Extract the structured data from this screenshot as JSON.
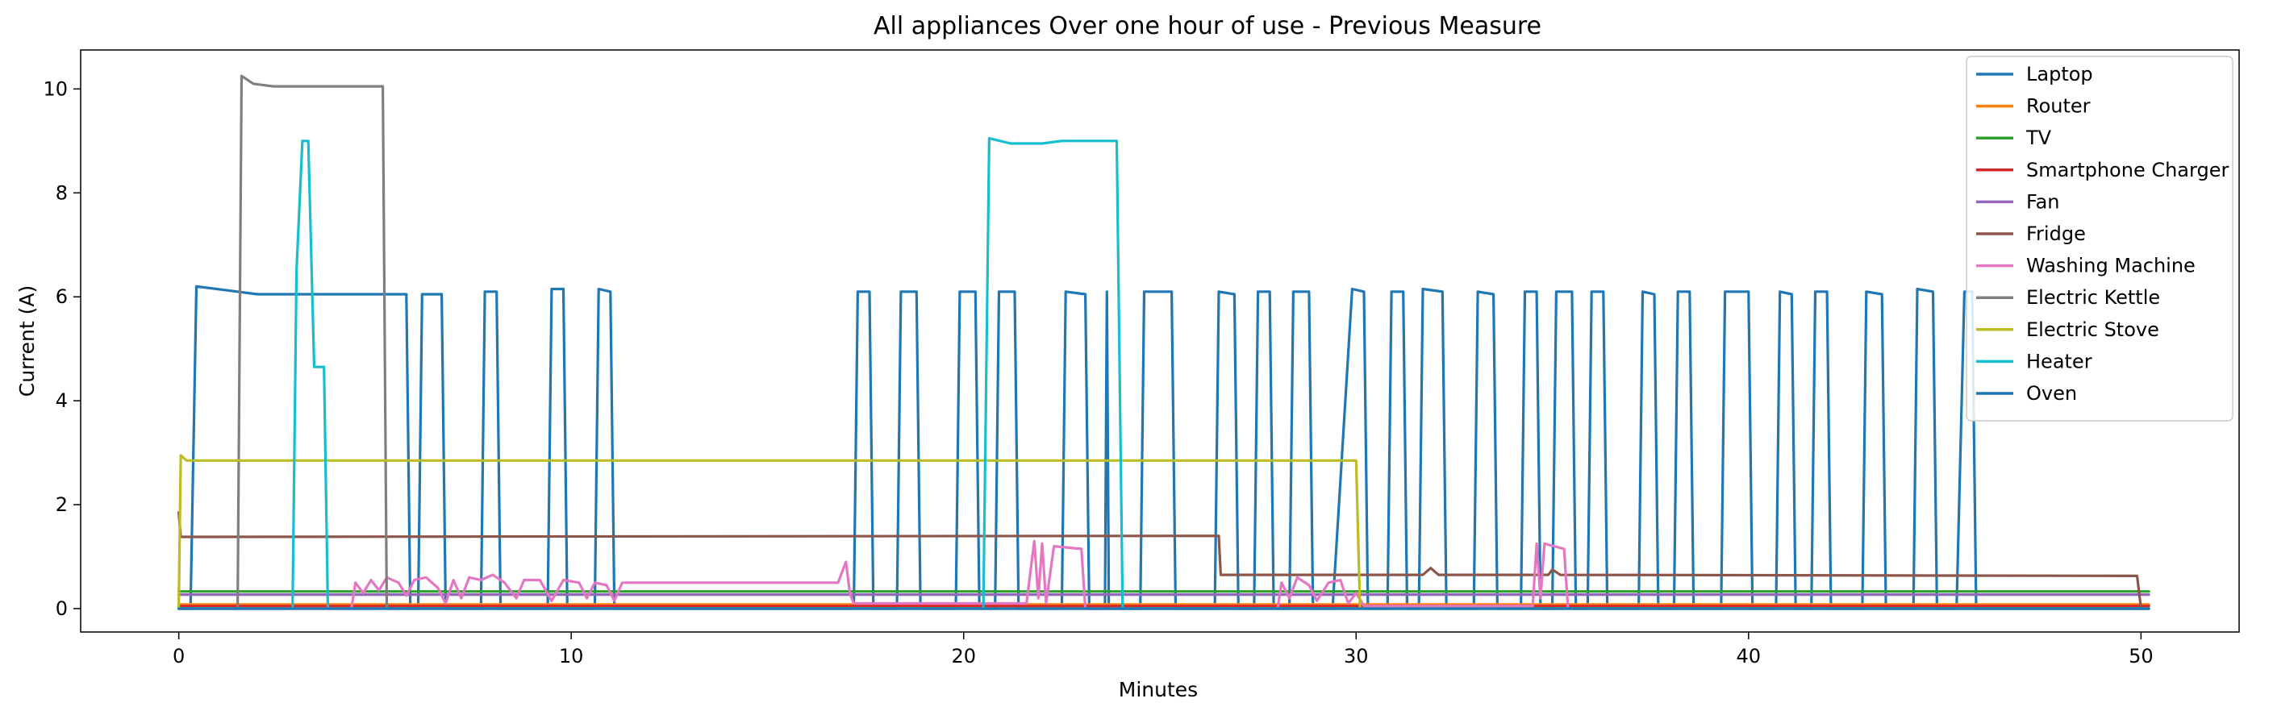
{
  "chart_data": {
    "type": "line",
    "title": "All appliances Over one hour of use - Previous Measure",
    "xlabel": "Minutes",
    "ylabel": "Current (A)",
    "xlim": [
      -2.5,
      52.5
    ],
    "ylim": [
      -0.45,
      10.75
    ],
    "xticks": [
      0,
      10,
      20,
      30,
      40,
      50
    ],
    "yticks": [
      0,
      2,
      4,
      6,
      8,
      10
    ],
    "grid": false,
    "legend_position": "top-right",
    "series": [
      {
        "name": "Laptop",
        "color": "#1f77b4",
        "points": [
          [
            0,
            0
          ],
          [
            0.3,
            0
          ],
          [
            0.45,
            6.2
          ],
          [
            1.5,
            6.1
          ],
          [
            2,
            6.05
          ],
          [
            5.3,
            6.05
          ],
          [
            5.8,
            6.05
          ],
          [
            5.9,
            0
          ],
          [
            6.1,
            0
          ],
          [
            6.2,
            6.05
          ],
          [
            6.7,
            6.05
          ],
          [
            6.8,
            0
          ],
          [
            7.7,
            0
          ],
          [
            7.8,
            6.1
          ],
          [
            8.1,
            6.1
          ],
          [
            8.2,
            0
          ],
          [
            9.4,
            0
          ],
          [
            9.5,
            6.15
          ],
          [
            9.8,
            6.15
          ],
          [
            9.9,
            0
          ],
          [
            10.6,
            0
          ],
          [
            10.7,
            6.15
          ],
          [
            11.0,
            6.1
          ],
          [
            11.1,
            0
          ],
          [
            17.2,
            0
          ],
          [
            17.3,
            6.1
          ],
          [
            17.6,
            6.1
          ],
          [
            17.7,
            0
          ],
          [
            18.3,
            0
          ],
          [
            18.4,
            6.1
          ],
          [
            18.8,
            6.1
          ],
          [
            18.9,
            0
          ],
          [
            19.8,
            0
          ],
          [
            19.9,
            6.1
          ],
          [
            20.3,
            6.1
          ],
          [
            20.4,
            0
          ],
          [
            20.8,
            0
          ],
          [
            20.9,
            6.1
          ],
          [
            21.3,
            6.1
          ],
          [
            21.4,
            0
          ],
          [
            22.5,
            0
          ],
          [
            22.6,
            6.1
          ],
          [
            23.1,
            6.05
          ],
          [
            23.2,
            0
          ],
          [
            23.6,
            0
          ],
          [
            23.65,
            6.1
          ],
          [
            23.7,
            0
          ],
          [
            24.5,
            0
          ],
          [
            24.6,
            6.1
          ],
          [
            25.3,
            6.1
          ],
          [
            25.4,
            0
          ],
          [
            26.4,
            0
          ],
          [
            26.5,
            6.1
          ],
          [
            26.9,
            6.05
          ],
          [
            27.0,
            0
          ],
          [
            27.4,
            0
          ],
          [
            27.5,
            6.1
          ],
          [
            27.8,
            6.1
          ],
          [
            27.9,
            0
          ],
          [
            28.3,
            0
          ],
          [
            28.4,
            6.1
          ],
          [
            28.8,
            6.1
          ],
          [
            28.9,
            0
          ],
          [
            29.4,
            0
          ],
          [
            29.9,
            6.15
          ],
          [
            30.2,
            6.1
          ],
          [
            30.3,
            0
          ],
          [
            30.8,
            0
          ],
          [
            30.9,
            6.1
          ],
          [
            31.2,
            6.1
          ],
          [
            31.3,
            0
          ],
          [
            31.6,
            0
          ],
          [
            31.7,
            6.15
          ],
          [
            32.2,
            6.1
          ],
          [
            32.3,
            0
          ],
          [
            33.0,
            0
          ],
          [
            33.1,
            6.1
          ],
          [
            33.5,
            6.05
          ],
          [
            33.6,
            0
          ],
          [
            34.2,
            0
          ],
          [
            34.3,
            6.1
          ],
          [
            34.6,
            6.1
          ],
          [
            34.7,
            0
          ],
          [
            35.0,
            0
          ],
          [
            35.1,
            6.1
          ],
          [
            35.5,
            6.1
          ],
          [
            35.6,
            0
          ],
          [
            35.9,
            0
          ],
          [
            36.0,
            6.1
          ],
          [
            36.3,
            6.1
          ],
          [
            36.4,
            0
          ],
          [
            37.2,
            0
          ],
          [
            37.3,
            6.1
          ],
          [
            37.6,
            6.05
          ],
          [
            37.7,
            0
          ],
          [
            38.1,
            0
          ],
          [
            38.2,
            6.1
          ],
          [
            38.5,
            6.1
          ],
          [
            38.6,
            0
          ],
          [
            39.3,
            0
          ],
          [
            39.4,
            6.1
          ],
          [
            40.0,
            6.1
          ],
          [
            40.1,
            0
          ],
          [
            40.7,
            0
          ],
          [
            40.8,
            6.1
          ],
          [
            41.1,
            6.05
          ],
          [
            41.2,
            0
          ],
          [
            41.6,
            0
          ],
          [
            41.7,
            6.1
          ],
          [
            42.0,
            6.1
          ],
          [
            42.1,
            0
          ],
          [
            42.9,
            0
          ],
          [
            43.0,
            6.1
          ],
          [
            43.4,
            6.05
          ],
          [
            43.5,
            0
          ],
          [
            44.2,
            0
          ],
          [
            44.3,
            6.15
          ],
          [
            44.7,
            6.1
          ],
          [
            44.8,
            0
          ],
          [
            45.3,
            0
          ],
          [
            45.5,
            6.1
          ],
          [
            45.7,
            6.1
          ],
          [
            45.8,
            0
          ],
          [
            50.2,
            0
          ]
        ]
      },
      {
        "name": "Router",
        "color": "#ff7f0e",
        "points": [
          [
            0,
            0.08
          ],
          [
            50.2,
            0.08
          ]
        ]
      },
      {
        "name": "TV",
        "color": "#2ca02c",
        "points": [
          [
            0,
            0.33
          ],
          [
            50.2,
            0.33
          ]
        ]
      },
      {
        "name": "Smartphone Charger",
        "color": "#d62728",
        "points": [
          [
            0,
            0.05
          ],
          [
            50.2,
            0.05
          ]
        ]
      },
      {
        "name": "Fan",
        "color": "#9467bd",
        "points": [
          [
            0,
            0.27
          ],
          [
            50.2,
            0.27
          ]
        ]
      },
      {
        "name": "Fridge",
        "color": "#8c564b",
        "points": [
          [
            0,
            1.85
          ],
          [
            0.05,
            1.38
          ],
          [
            26.5,
            1.4
          ],
          [
            26.55,
            0.65
          ],
          [
            31.7,
            0.65
          ],
          [
            31.9,
            0.78
          ],
          [
            32.1,
            0.65
          ],
          [
            34.9,
            0.65
          ],
          [
            35.0,
            0.75
          ],
          [
            35.2,
            0.65
          ],
          [
            49.9,
            0.63
          ],
          [
            50.0,
            0
          ]
        ]
      },
      {
        "name": "Washing Machine",
        "color": "#e377c2",
        "points": [
          [
            0,
            0
          ],
          [
            4.4,
            0
          ],
          [
            4.5,
            0.5
          ],
          [
            4.7,
            0.3
          ],
          [
            4.9,
            0.55
          ],
          [
            5.1,
            0.35
          ],
          [
            5.3,
            0.6
          ],
          [
            5.6,
            0.5
          ],
          [
            5.8,
            0.25
          ],
          [
            6.0,
            0.55
          ],
          [
            6.3,
            0.6
          ],
          [
            6.6,
            0.4
          ],
          [
            6.8,
            0.1
          ],
          [
            7.0,
            0.55
          ],
          [
            7.2,
            0.2
          ],
          [
            7.4,
            0.6
          ],
          [
            7.7,
            0.55
          ],
          [
            8.0,
            0.65
          ],
          [
            8.3,
            0.5
          ],
          [
            8.6,
            0.2
          ],
          [
            8.8,
            0.55
          ],
          [
            9.2,
            0.55
          ],
          [
            9.5,
            0.15
          ],
          [
            9.8,
            0.55
          ],
          [
            10.2,
            0.5
          ],
          [
            10.4,
            0.2
          ],
          [
            10.6,
            0.5
          ],
          [
            10.9,
            0.45
          ],
          [
            11.1,
            0.15
          ],
          [
            11.3,
            0.5
          ],
          [
            16.8,
            0.5
          ],
          [
            17.0,
            0.9
          ],
          [
            17.1,
            0.3
          ],
          [
            17.2,
            0.1
          ],
          [
            21.6,
            0.1
          ],
          [
            21.8,
            1.3
          ],
          [
            21.9,
            0.2
          ],
          [
            22.0,
            1.25
          ],
          [
            22.1,
            0.1
          ],
          [
            22.3,
            1.2
          ],
          [
            23.0,
            1.15
          ],
          [
            23.1,
            0
          ],
          [
            28.0,
            0
          ],
          [
            28.1,
            0.5
          ],
          [
            28.3,
            0.2
          ],
          [
            28.5,
            0.6
          ],
          [
            28.8,
            0.45
          ],
          [
            29.0,
            0.15
          ],
          [
            29.3,
            0.5
          ],
          [
            29.6,
            0.55
          ],
          [
            29.8,
            0.1
          ],
          [
            30.0,
            0.3
          ],
          [
            30.2,
            0.05
          ],
          [
            34.5,
            0.05
          ],
          [
            34.6,
            1.25
          ],
          [
            34.7,
            0.2
          ],
          [
            34.8,
            1.25
          ],
          [
            35.3,
            1.15
          ],
          [
            35.4,
            0
          ],
          [
            50.2,
            0
          ]
        ]
      },
      {
        "name": "Electric Kettle",
        "color": "#7f7f7f",
        "points": [
          [
            0,
            0
          ],
          [
            1.5,
            0
          ],
          [
            1.6,
            10.25
          ],
          [
            1.9,
            10.1
          ],
          [
            2.4,
            10.05
          ],
          [
            5.0,
            10.05
          ],
          [
            5.2,
            10.05
          ],
          [
            5.3,
            0
          ],
          [
            50.2,
            0
          ]
        ]
      },
      {
        "name": "Electric Stove",
        "color": "#bcbd22",
        "points": [
          [
            0,
            0
          ],
          [
            0.05,
            2.95
          ],
          [
            0.2,
            2.85
          ],
          [
            30.0,
            2.85
          ],
          [
            30.1,
            0
          ],
          [
            50.2,
            0
          ]
        ]
      },
      {
        "name": "Heater",
        "color": "#17becf",
        "points": [
          [
            0,
            0
          ],
          [
            2.9,
            0
          ],
          [
            3.0,
            6.5
          ],
          [
            3.15,
            9.0
          ],
          [
            3.3,
            9.0
          ],
          [
            3.45,
            4.65
          ],
          [
            3.7,
            4.65
          ],
          [
            3.8,
            0
          ],
          [
            20.5,
            0
          ],
          [
            20.65,
            9.05
          ],
          [
            21.2,
            8.95
          ],
          [
            22.0,
            8.95
          ],
          [
            22.5,
            9.0
          ],
          [
            23.9,
            9.0
          ],
          [
            24.05,
            0
          ],
          [
            50.2,
            0
          ]
        ]
      },
      {
        "name": "Oven",
        "color": "#1f77b4",
        "points": [
          [
            0,
            0
          ],
          [
            50.2,
            0
          ]
        ]
      }
    ]
  }
}
